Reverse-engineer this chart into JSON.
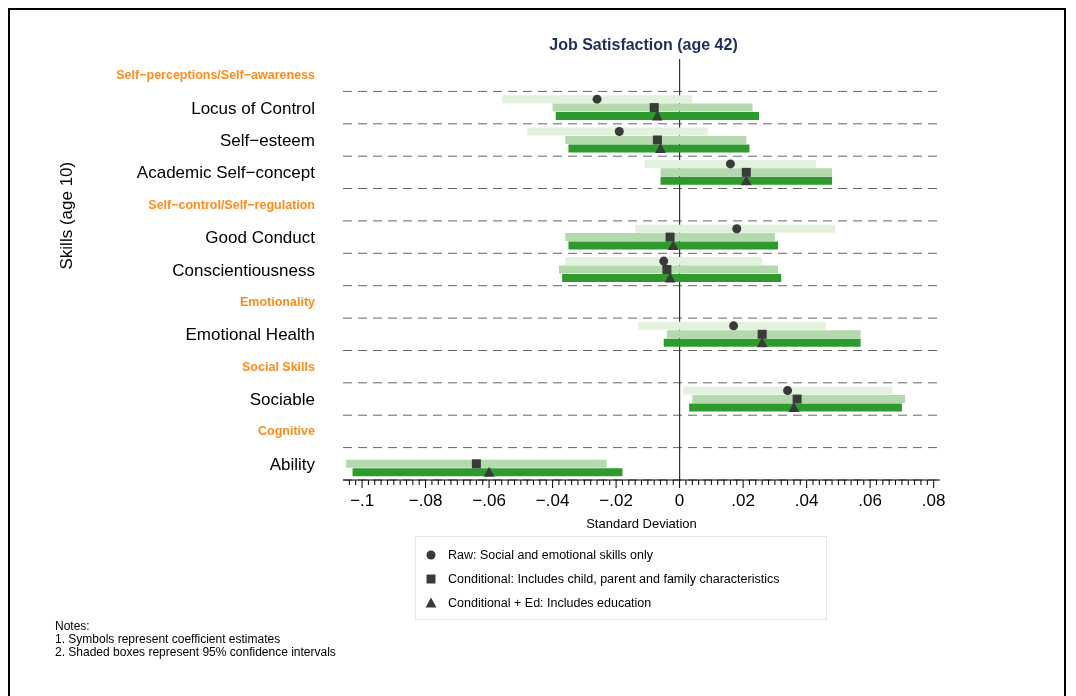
{
  "chart_data": {
    "type": "scatter",
    "orientation": "horizontal",
    "title": "Job Satisfaction (age 42)",
    "xlabel": "Standard Deviation",
    "ylabel": "Skills (age 10)",
    "categories": [
      "Self−perceptions/Self−awareness",
      "Locus of Control",
      "Self−esteem",
      "Academic Self−concept",
      "Self−control/Self−regulation",
      "Good Conduct",
      "Conscientiousness",
      "Emotionality",
      "Emotional Health",
      "Social Skills",
      "Sociable",
      "Cognitive",
      "Ability"
    ],
    "series": [
      {
        "name": "Raw: Social and emotional skills only",
        "color": "#3a3a3a",
        "marker": "circle",
        "values": [
          null,
          -0.026,
          -0.019,
          0.016,
          null,
          0.018,
          -0.005,
          null,
          0.017,
          null,
          0.034,
          null,
          null
        ],
        "errors": [
          null,
          [
            -0.056,
            0.004
          ],
          [
            -0.048,
            0.009
          ],
          [
            -0.011,
            0.043
          ],
          null,
          [
            -0.014,
            0.049
          ],
          [
            -0.036,
            0.026
          ],
          null,
          [
            -0.013,
            0.046
          ],
          null,
          [
            0.001,
            0.067
          ],
          null,
          null
        ]
      },
      {
        "name": "Conditional: Includes child, parent and family characteristics",
        "color": "#3a3a3a",
        "marker": "square",
        "values": [
          null,
          -0.008,
          -0.007,
          0.021,
          null,
          -0.003,
          -0.004,
          null,
          0.026,
          null,
          0.037,
          null,
          -0.064
        ],
        "errors": [
          null,
          [
            -0.04,
            0.023
          ],
          [
            -0.036,
            0.021
          ],
          [
            -0.006,
            0.048
          ],
          null,
          [
            -0.036,
            0.03
          ],
          [
            -0.038,
            0.031
          ],
          null,
          [
            -0.004,
            0.057
          ],
          null,
          [
            0.004,
            0.071
          ],
          null,
          [
            -0.105,
            -0.023
          ]
        ]
      },
      {
        "name": "Conditional + Ed: Includes education",
        "color": "#3a3a3a",
        "marker": "triangle",
        "values": [
          null,
          -0.007,
          -0.006,
          0.021,
          null,
          -0.002,
          -0.003,
          null,
          0.026,
          null,
          0.036,
          null,
          -0.06
        ],
        "errors": [
          null,
          [
            -0.039,
            0.025
          ],
          [
            -0.035,
            0.022
          ],
          [
            -0.006,
            0.048
          ],
          null,
          [
            -0.035,
            0.031
          ],
          [
            -0.037,
            0.032
          ],
          null,
          [
            -0.005,
            0.057
          ],
          null,
          [
            0.003,
            0.07
          ],
          null,
          [
            -0.103,
            -0.018
          ]
        ]
      }
    ],
    "xlim": [
      -0.106,
      0.082
    ],
    "xticks": [
      {
        "value": -0.104,
        "label": null
      },
      {
        "value": -0.102,
        "label": null
      },
      {
        "value": -0.1,
        "label": "−.1"
      },
      {
        "value": -0.098,
        "label": null
      },
      {
        "value": -0.096,
        "label": null
      },
      {
        "value": -0.094,
        "label": null
      },
      {
        "value": -0.092,
        "label": null
      },
      {
        "value": -0.09,
        "label": null
      },
      {
        "value": -0.088,
        "label": null
      },
      {
        "value": -0.086,
        "label": null
      },
      {
        "value": -0.084,
        "label": null
      },
      {
        "value": -0.082,
        "label": null
      },
      {
        "value": -0.08,
        "label": "−.08"
      },
      {
        "value": -0.078,
        "label": null
      },
      {
        "value": -0.076,
        "label": null
      },
      {
        "value": -0.074,
        "label": null
      },
      {
        "value": -0.072,
        "label": null
      },
      {
        "value": -0.07,
        "label": null
      },
      {
        "value": -0.068,
        "label": null
      },
      {
        "value": -0.066,
        "label": null
      },
      {
        "value": -0.064,
        "label": null
      },
      {
        "value": -0.062,
        "label": null
      },
      {
        "value": -0.06,
        "label": "−.06"
      },
      {
        "value": -0.058,
        "label": null
      },
      {
        "value": -0.056,
        "label": null
      },
      {
        "value": -0.054,
        "label": null
      },
      {
        "value": -0.052,
        "label": null
      },
      {
        "value": -0.05,
        "label": null
      },
      {
        "value": -0.048,
        "label": null
      },
      {
        "value": -0.046,
        "label": null
      },
      {
        "value": -0.044,
        "label": null
      },
      {
        "value": -0.042,
        "label": null
      },
      {
        "value": -0.04,
        "label": "−.04"
      },
      {
        "value": -0.038,
        "label": null
      },
      {
        "value": -0.036,
        "label": null
      },
      {
        "value": -0.034,
        "label": null
      },
      {
        "value": -0.032,
        "label": null
      },
      {
        "value": -0.03,
        "label": null
      },
      {
        "value": -0.028,
        "label": null
      },
      {
        "value": -0.026,
        "label": null
      },
      {
        "value": -0.024,
        "label": null
      },
      {
        "value": -0.022,
        "label": null
      },
      {
        "value": -0.02,
        "label": "−.02"
      },
      {
        "value": -0.018,
        "label": null
      },
      {
        "value": -0.016,
        "label": null
      },
      {
        "value": -0.014,
        "label": null
      },
      {
        "value": -0.012,
        "label": null
      },
      {
        "value": -0.01,
        "label": null
      },
      {
        "value": -0.008,
        "label": null
      },
      {
        "value": -0.006,
        "label": null
      },
      {
        "value": -0.004,
        "label": null
      },
      {
        "value": -0.002,
        "label": null
      },
      {
        "value": 0,
        "label": "0"
      },
      {
        "value": 0.002,
        "label": null
      },
      {
        "value": 0.004,
        "label": null
      },
      {
        "value": 0.006,
        "label": null
      },
      {
        "value": 0.008,
        "label": null
      },
      {
        "value": 0.01,
        "label": null
      },
      {
        "value": 0.012,
        "label": null
      },
      {
        "value": 0.014,
        "label": null
      },
      {
        "value": 0.016,
        "label": null
      },
      {
        "value": 0.018,
        "label": null
      },
      {
        "value": 0.02,
        "label": ".02"
      },
      {
        "value": 0.022,
        "label": null
      },
      {
        "value": 0.024,
        "label": null
      },
      {
        "value": 0.026,
        "label": null
      },
      {
        "value": 0.028,
        "label": null
      },
      {
        "value": 0.03,
        "label": null
      },
      {
        "value": 0.032,
        "label": null
      },
      {
        "value": 0.034,
        "label": null
      },
      {
        "value": 0.036,
        "label": null
      },
      {
        "value": 0.038,
        "label": null
      },
      {
        "value": 0.04,
        "label": ".04"
      },
      {
        "value": 0.042,
        "label": null
      },
      {
        "value": 0.044,
        "label": null
      },
      {
        "value": 0.046,
        "label": null
      },
      {
        "value": 0.048,
        "label": null
      },
      {
        "value": 0.05,
        "label": null
      },
      {
        "value": 0.052,
        "label": null
      },
      {
        "value": 0.054,
        "label": null
      },
      {
        "value": 0.056,
        "label": null
      },
      {
        "value": 0.058,
        "label": null
      },
      {
        "value": 0.06,
        "label": ".06"
      },
      {
        "value": 0.062,
        "label": null
      },
      {
        "value": 0.064,
        "label": null
      },
      {
        "value": 0.066,
        "label": null
      },
      {
        "value": 0.068,
        "label": null
      },
      {
        "value": 0.07,
        "label": null
      },
      {
        "value": 0.072,
        "label": null
      },
      {
        "value": 0.074,
        "label": null
      },
      {
        "value": 0.076,
        "label": null
      },
      {
        "value": 0.078,
        "label": null
      },
      {
        "value": 0.08,
        "label": ".08"
      }
    ],
    "ref_lines": [
      {
        "axis": "x",
        "value": 0,
        "label": null
      }
    ],
    "grid": "y",
    "legend": "bottom",
    "annotations": [
      "Notes:",
      "1. Symbols represent coefficient estimates",
      "2. Shaded boxes represent 95% confidence intervals"
    ]
  }
}
